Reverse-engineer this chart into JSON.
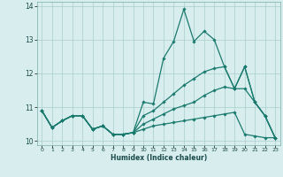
{
  "xlabel": "Humidex (Indice chaleur)",
  "xlim": [
    -0.5,
    23.5
  ],
  "ylim": [
    9.88,
    14.12
  ],
  "xticks": [
    0,
    1,
    2,
    3,
    4,
    5,
    6,
    7,
    8,
    9,
    10,
    11,
    12,
    13,
    14,
    15,
    16,
    17,
    18,
    19,
    20,
    21,
    22,
    23
  ],
  "yticks": [
    10,
    11,
    12,
    13,
    14
  ],
  "line_color": "#1a7a6e",
  "bg_color": "#d8eeee",
  "grid_color": "#aacece",
  "series": [
    {
      "x": [
        0,
        1,
        2,
        3,
        4,
        5,
        6,
        7,
        8,
        9,
        10,
        11,
        12,
        13,
        14,
        15,
        16,
        17,
        18,
        19,
        20,
        21,
        22,
        23
      ],
      "y": [
        10.9,
        10.4,
        10.6,
        10.75,
        10.75,
        10.35,
        10.45,
        10.2,
        10.2,
        10.25,
        11.15,
        11.1,
        12.45,
        12.95,
        13.9,
        12.95,
        13.25,
        13.0,
        12.2,
        11.55,
        12.2,
        11.15,
        10.75,
        10.1
      ]
    },
    {
      "x": [
        0,
        1,
        2,
        3,
        4,
        5,
        6,
        7,
        8,
        9,
        10,
        11,
        12,
        13,
        14,
        15,
        16,
        17,
        18,
        19,
        20,
        21,
        22,
        23
      ],
      "y": [
        10.9,
        10.4,
        10.6,
        10.75,
        10.75,
        10.35,
        10.45,
        10.2,
        10.2,
        10.25,
        10.75,
        10.9,
        11.15,
        11.4,
        11.65,
        11.85,
        12.05,
        12.15,
        12.2,
        11.55,
        12.2,
        11.15,
        10.75,
        10.1
      ]
    },
    {
      "x": [
        0,
        1,
        2,
        3,
        4,
        5,
        6,
        7,
        8,
        9,
        10,
        11,
        12,
        13,
        14,
        15,
        16,
        17,
        18,
        19,
        20,
        21,
        22,
        23
      ],
      "y": [
        10.9,
        10.4,
        10.6,
        10.75,
        10.75,
        10.35,
        10.45,
        10.2,
        10.2,
        10.25,
        10.5,
        10.65,
        10.8,
        10.95,
        11.05,
        11.15,
        11.35,
        11.5,
        11.6,
        11.55,
        11.55,
        11.15,
        10.75,
        10.1
      ]
    },
    {
      "x": [
        0,
        1,
        2,
        3,
        4,
        5,
        6,
        7,
        8,
        9,
        10,
        11,
        12,
        13,
        14,
        15,
        16,
        17,
        18,
        19,
        20,
        21,
        22,
        23
      ],
      "y": [
        10.9,
        10.4,
        10.6,
        10.75,
        10.75,
        10.35,
        10.45,
        10.2,
        10.2,
        10.25,
        10.35,
        10.45,
        10.5,
        10.55,
        10.6,
        10.65,
        10.7,
        10.75,
        10.8,
        10.85,
        10.2,
        10.15,
        10.1,
        10.1
      ]
    }
  ]
}
